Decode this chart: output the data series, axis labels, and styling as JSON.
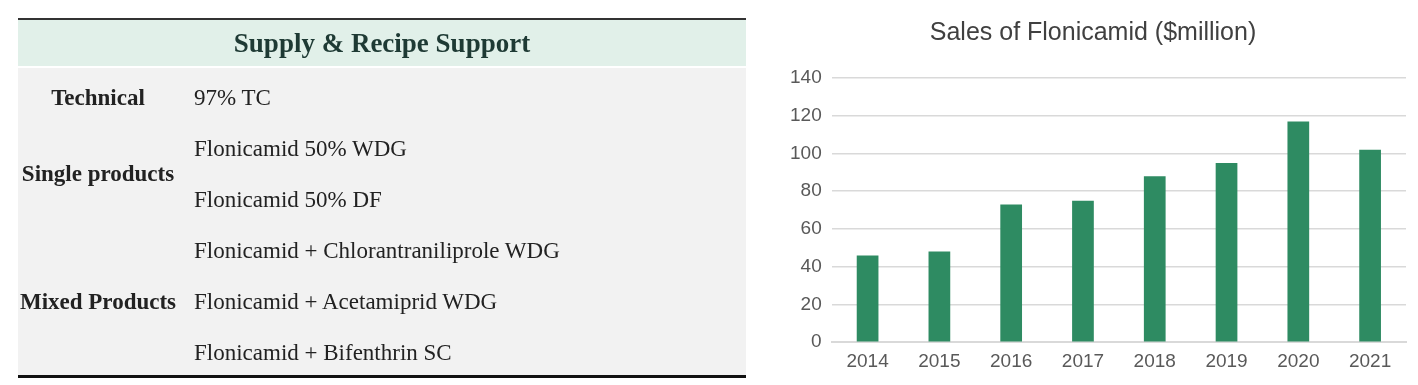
{
  "chart_data": [
    {
      "type": "other",
      "title": "Supply & Recipe Support",
      "categories": [
        "Technical",
        "Single products",
        null,
        "Mixed Products",
        null,
        null
      ],
      "annotations": [
        "97% TC",
        "Flonicamid 50% WDG",
        "Flonicamid 50% DF",
        "Flonicamid + Chlorantraniliprole WDG",
        "Flonicamid + Acetamiprid WDG",
        "Flonicamid + Bifenthrin SC"
      ]
    },
    {
      "type": "bar",
      "title": "Sales of Flonicamid ($million)",
      "categories": [
        "2014",
        "2015",
        "2016",
        "2017",
        "2018",
        "2019",
        "2020",
        "2021"
      ],
      "values": [
        46,
        48,
        73,
        75,
        88,
        95,
        117,
        102
      ],
      "color": "#2e8b62",
      "ylim": [
        0,
        140
      ],
      "yticks": [
        0,
        20,
        40,
        60,
        80,
        100,
        120,
        140
      ],
      "grid": "y"
    }
  ]
}
